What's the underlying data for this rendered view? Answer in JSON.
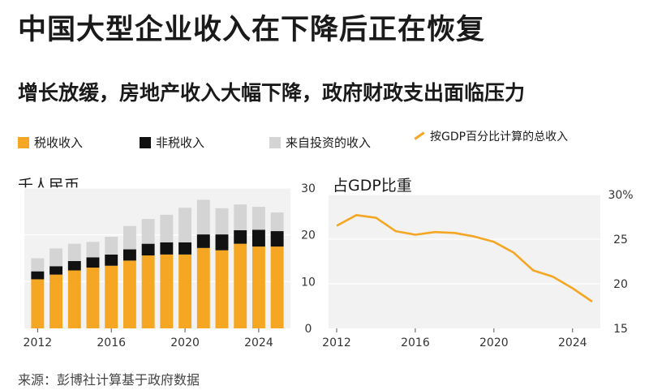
{
  "title": "中国大型企业收入在下降后正在恢复",
  "subtitle": "增长放缓，房地产收入大幅下降，政府财政支出面临压力",
  "legend": {
    "tax": "税收收入",
    "nontax": "非税收入",
    "investment": "来自投资的收入",
    "gdp_line": "按GDP百分比计算的总收入"
  },
  "source": "来源：彭博社计算基于政府数据",
  "colors": {
    "tax": "#f5a623",
    "nontax": "#111111",
    "investment": "#d4d4d4",
    "line": "#f5a623",
    "panel_bg": "#f2f2f2",
    "grid": "#ffffff"
  },
  "chart_data": [
    {
      "type": "bar",
      "stacked": true,
      "title": "",
      "unit_label": "千人民币",
      "x": [
        2012,
        2013,
        2014,
        2015,
        2016,
        2017,
        2018,
        2019,
        2020,
        2021,
        2022,
        2023,
        2024,
        2025
      ],
      "xticks": [
        "2012",
        "2016",
        "2020",
        "2024"
      ],
      "ylim": [
        0,
        30
      ],
      "yticks": [
        "0",
        "10",
        "20",
        "30"
      ],
      "y_axis_position": "right",
      "series": [
        {
          "name": "税收收入",
          "values": [
            10.5,
            11.5,
            12.4,
            13.0,
            13.4,
            14.5,
            15.6,
            15.8,
            15.8,
            17.2,
            16.7,
            18.1,
            17.5,
            17.5
          ]
        },
        {
          "name": "非税收入",
          "values": [
            1.7,
            1.8,
            2.0,
            2.2,
            2.4,
            2.4,
            2.5,
            2.6,
            2.6,
            2.9,
            3.4,
            2.9,
            3.6,
            3.3
          ]
        },
        {
          "name": "来自投资的收入",
          "values": [
            2.8,
            3.8,
            3.7,
            3.3,
            3.8,
            5.0,
            5.3,
            5.9,
            7.4,
            7.4,
            5.6,
            5.5,
            4.9,
            4.0
          ]
        }
      ],
      "grid": true
    },
    {
      "type": "line",
      "title": "占GDP比重",
      "x": [
        2012,
        2013,
        2014,
        2015,
        2016,
        2017,
        2018,
        2019,
        2020,
        2021,
        2022,
        2023,
        2024,
        2025
      ],
      "xticks": [
        "2012",
        "2016",
        "2020",
        "2024"
      ],
      "ylim": [
        15,
        30
      ],
      "yticks": [
        "15",
        "20",
        "25",
        "30%"
      ],
      "y_axis_position": "right",
      "series": [
        {
          "name": "按GDP百分比计算的总收入",
          "values": [
            26.5,
            27.7,
            27.4,
            25.9,
            25.5,
            25.8,
            25.7,
            25.3,
            24.7,
            23.5,
            21.5,
            20.8,
            19.5,
            18.0
          ]
        }
      ],
      "grid": true
    }
  ]
}
